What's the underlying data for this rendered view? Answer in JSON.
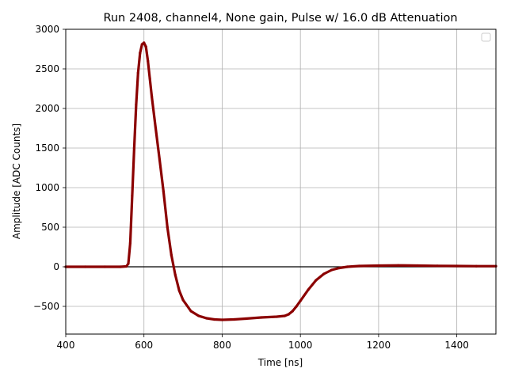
{
  "chart_data": {
    "type": "line",
    "title": "Run 2408, channel4, None gain, Pulse w/ 16.0 dB Attenuation",
    "xlabel": "Time [ns]",
    "ylabel": "Amplitude [ADC Counts]",
    "xlim": [
      400,
      1500
    ],
    "ylim": [
      -850,
      3000
    ],
    "xticks": [
      400,
      600,
      800,
      1000,
      1200,
      1400
    ],
    "yticks": [
      -500,
      0,
      500,
      1000,
      1500,
      2000,
      2500,
      3000
    ],
    "grid": true,
    "legend": "top-right (empty)",
    "series_color": "#8b0000",
    "baseline_color": "#000000",
    "baseline_value": 0,
    "series": [
      {
        "x": [
          400,
          450,
          500,
          540,
          555,
          560,
          565,
          570,
          575,
          580,
          585,
          590,
          595,
          600,
          605,
          610,
          615,
          620,
          630,
          640,
          650,
          660,
          670,
          680,
          690,
          700,
          720,
          740,
          760,
          780,
          800,
          830,
          860,
          900,
          940,
          960,
          970,
          980,
          990,
          1000,
          1020,
          1040,
          1060,
          1080,
          1100,
          1120,
          1150,
          1200,
          1250,
          1300,
          1350,
          1400,
          1450,
          1500
        ],
        "y": [
          0,
          0,
          0,
          0,
          5,
          40,
          300,
          900,
          1500,
          2050,
          2450,
          2700,
          2810,
          2830,
          2780,
          2600,
          2380,
          2150,
          1750,
          1350,
          950,
          500,
          150,
          -100,
          -300,
          -420,
          -560,
          -620,
          -650,
          -665,
          -670,
          -665,
          -655,
          -640,
          -630,
          -620,
          -600,
          -560,
          -500,
          -430,
          -290,
          -170,
          -90,
          -40,
          -15,
          0,
          10,
          15,
          18,
          15,
          12,
          10,
          8,
          8
        ]
      }
    ]
  }
}
